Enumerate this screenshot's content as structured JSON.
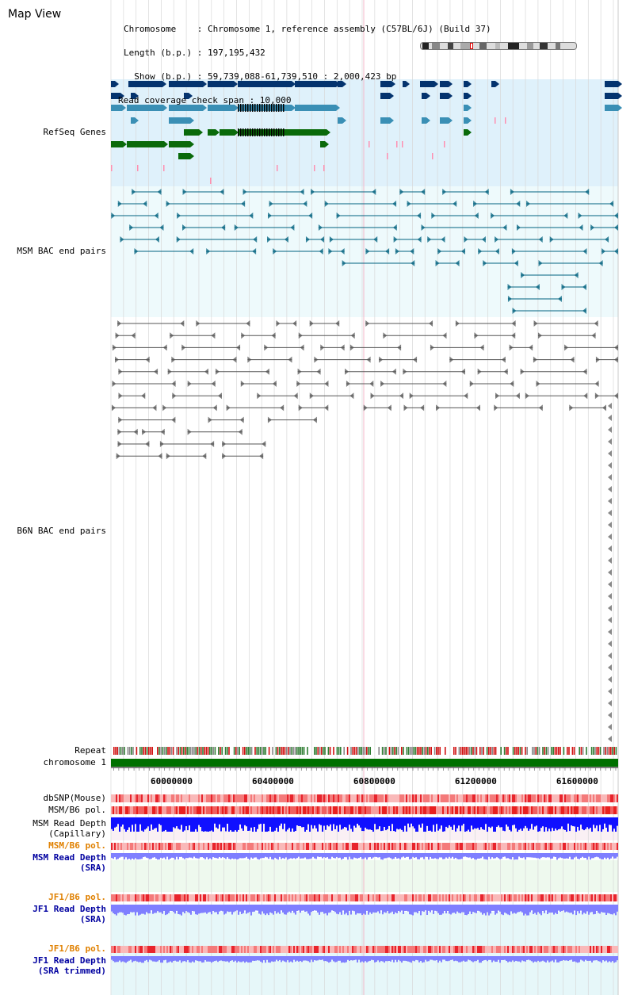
{
  "page": {
    "title": "Map View"
  },
  "header": {
    "lines": [
      "Chromosome    : Chromosome 1, reference assembly (C57BL/6J) (Build 37)",
      "Length (b.p.) : 197,195,432",
      "  Show (b.p.) : 59,739,088-61,739,510 : 2,000,423 bp",
      "Read coverage check span : 10,000"
    ]
  },
  "tracks": {
    "refseq": {
      "label": "RefSeq Genes",
      "color": "#000080"
    },
    "msm_bac": {
      "label": "MSM BAC end pairs",
      "color": "#006080"
    },
    "b6n_bac": {
      "label": "B6N BAC end pairs",
      "color": "#404040"
    },
    "repeat": {
      "label": "Repeat"
    },
    "chromosome": {
      "label": "chromosome 1",
      "color": "#007000"
    },
    "dbsnp": {
      "label": "dbSNP(Mouse)"
    },
    "msm_b6_pol": {
      "label": "MSM/B6 pol."
    },
    "msm_depth_cap": {
      "label1": "MSM Read Depth",
      "label2": "(Capillary)"
    },
    "msm_b6_pol2": {
      "label": "MSM/B6 pol.",
      "color": "#e08000"
    },
    "msm_depth_sra": {
      "label1": "MSM Read Depth",
      "label2": "(SRA)",
      "color": "#0000a0"
    },
    "jf1_b6_pol": {
      "label": "JF1/B6 pol.",
      "color": "#e08000"
    },
    "jf1_depth_sra": {
      "label1": "JF1 Read Depth",
      "label2": "(SRA)",
      "color": "#0000a0"
    },
    "jf1_b6_pol2": {
      "label": "JF1/B6 pol.",
      "color": "#e08000"
    },
    "jf1_depth_trim": {
      "label1": "JF1 Read Depth",
      "label2": "(SRA trimmed)",
      "color": "#0000a0"
    }
  },
  "axis": {
    "ticks": [
      "60000000",
      "60400000",
      "60800000",
      "61200000",
      "61600000"
    ],
    "tick_values": [
      60000000,
      60400000,
      60800000,
      61200000,
      61600000
    ],
    "start": 59739088,
    "end": 61739510
  },
  "colors": {
    "refseq_bg": "#dff1fb",
    "msm_bg": "#eefafc",
    "gene_dark": "#04336e",
    "gene_mid": "#3a8fb5",
    "gene_green": "#0a6a0a",
    "pink": "#ff8fb0",
    "msm_line": "#00627f",
    "b6n_line": "#555555",
    "depth_blue": "#1010ff",
    "depth_light": "#7f7fff"
  }
}
